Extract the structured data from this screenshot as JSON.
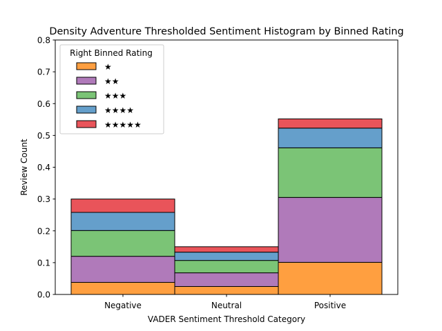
{
  "chart_data": {
    "type": "bar",
    "stacked": true,
    "title": "Density Adventure Thresholded Sentiment Histogram by Binned Rating",
    "xlabel": "VADER Sentiment Threshold Category",
    "ylabel": "Review Count",
    "categories": [
      "Negative",
      "Neutral",
      "Positive"
    ],
    "ylim": [
      0,
      0.8
    ],
    "yticks": [
      "0.0",
      "0.1",
      "0.2",
      "0.3",
      "0.4",
      "0.5",
      "0.6",
      "0.7",
      "0.8"
    ],
    "grid": false,
    "legend": {
      "title": "Right Binned Rating",
      "placement": "top-left"
    },
    "series": [
      {
        "name": "★",
        "color": "#ff9f40",
        "values": [
          0.038,
          0.025,
          0.101
        ]
      },
      {
        "name": "★★",
        "color": "#b07aba",
        "values": [
          0.082,
          0.043,
          0.204
        ]
      },
      {
        "name": "★★★",
        "color": "#7bc476",
        "values": [
          0.081,
          0.039,
          0.156
        ]
      },
      {
        "name": "★★★★",
        "color": "#659fcb",
        "values": [
          0.057,
          0.026,
          0.062
        ]
      },
      {
        "name": "★★★★★",
        "color": "#e9545a",
        "values": [
          0.042,
          0.017,
          0.029
        ]
      }
    ]
  }
}
